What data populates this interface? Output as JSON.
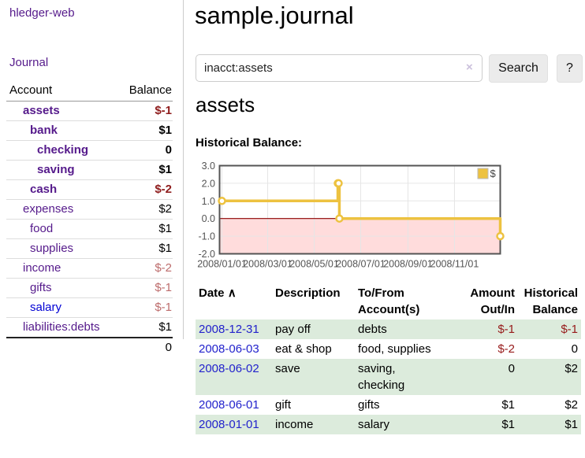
{
  "app": {
    "title": "hledger-web",
    "nav_journal": "Journal"
  },
  "colors": {
    "link_purple": "#551a8b",
    "link_blue": "#0000d4",
    "date_link_blue": "#2222cc",
    "negative_strong": "#8f1d1d",
    "negative_muted": "#bd6c6c",
    "register_negative": "#971a1a",
    "row_green": "#dcebdc",
    "series_gold": "#edc240",
    "negative_region_pink": "#ffdcdc",
    "zero_line_red": "#8b0000",
    "chart_border": "#545454"
  },
  "sidebar": {
    "table": {
      "account_header": "Account",
      "balance_header": "Balance",
      "rows": [
        {
          "name": "assets",
          "balance": "$-1",
          "depth": 1,
          "bold": true,
          "neg": "strong"
        },
        {
          "name": "bank",
          "balance": "$1",
          "depth": 2,
          "bold": true
        },
        {
          "name": "checking",
          "balance": "0",
          "depth": 3,
          "bold": true
        },
        {
          "name": "saving",
          "balance": "$1",
          "depth": 3,
          "bold": true
        },
        {
          "name": "cash",
          "balance": "$-2",
          "depth": 2,
          "bold": true,
          "neg": "strong"
        },
        {
          "name": "expenses",
          "balance": "$2",
          "depth": 1
        },
        {
          "name": "food",
          "balance": "$1",
          "depth": 2
        },
        {
          "name": "supplies",
          "balance": "$1",
          "depth": 2
        },
        {
          "name": "income",
          "balance": "$-2",
          "depth": 1,
          "neg": "muted"
        },
        {
          "name": "gifts",
          "balance": "$-1",
          "depth": 2,
          "neg": "muted"
        },
        {
          "name": "salary",
          "balance": "$-1",
          "depth": 2,
          "neg": "muted",
          "blue": true
        },
        {
          "name": "liabilities:debts",
          "balance": "$1",
          "depth": 1
        }
      ],
      "total": "0"
    }
  },
  "main": {
    "title": "sample.journal",
    "search": {
      "value": "inacct:assets",
      "clear_icon": "×",
      "button_label": "Search",
      "help_label": "?"
    },
    "account_heading": "assets",
    "chart_label": "Historical Balance:"
  },
  "chart_data": {
    "type": "line",
    "step": true,
    "title": "Historical Balance:",
    "legend": "$",
    "legend_position": "top-right",
    "grid": true,
    "ylim": [
      -2.0,
      3.0
    ],
    "y_ticks": [
      3.0,
      2.0,
      1.0,
      0.0,
      -1.0,
      -2.0
    ],
    "x_start": "2008-01-01",
    "x_end": "2008-12-31",
    "x_ticks": [
      {
        "label": "2008/01/01",
        "date": "2008-01-01"
      },
      {
        "label": "2008/03/01",
        "date": "2008-03-01"
      },
      {
        "label": "2008/05/01",
        "date": "2008-05-01"
      },
      {
        "label": "2008/07/01",
        "date": "2008-07-01"
      },
      {
        "label": "2008/09/01",
        "date": "2008-09-01"
      },
      {
        "label": "2008/11/01",
        "date": "2008-11-01"
      }
    ],
    "series": [
      {
        "name": "$",
        "color": "#edc240",
        "points": [
          [
            "2008-01-01",
            1
          ],
          [
            "2008-06-01",
            2
          ],
          [
            "2008-06-02",
            2
          ],
          [
            "2008-06-03",
            0
          ],
          [
            "2008-12-31",
            -1
          ]
        ]
      }
    ]
  },
  "register": {
    "headers": {
      "date": "Date",
      "date_sort_icon": "∧",
      "description": "Description",
      "accounts": "To/From Account(s)",
      "amount": "Amount Out/In",
      "balance": "Historical Balance"
    },
    "rows": [
      {
        "date": "2008-12-31",
        "description": "pay off",
        "accounts": "debts",
        "amount": "$-1",
        "balance": "$-1",
        "amount_neg": true,
        "balance_neg": true
      },
      {
        "date": "2008-06-03",
        "description": "eat & shop",
        "accounts": "food, supplies",
        "amount": "$-2",
        "balance": "0",
        "amount_neg": true
      },
      {
        "date": "2008-06-02",
        "description": "save",
        "accounts": "saving, checking",
        "amount": "0",
        "balance": "$2"
      },
      {
        "date": "2008-06-01",
        "description": "gift",
        "accounts": "gifts",
        "amount": "$1",
        "balance": "$2"
      },
      {
        "date": "2008-01-01",
        "description": "income",
        "accounts": "salary",
        "amount": "$1",
        "balance": "$1"
      }
    ]
  }
}
